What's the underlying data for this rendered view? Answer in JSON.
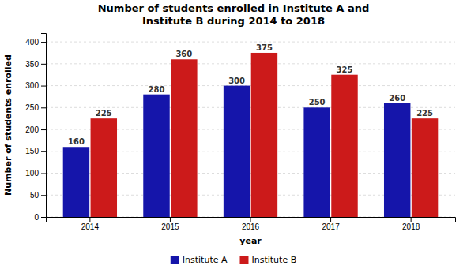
{
  "chart_data": {
    "type": "bar",
    "title": "Number of students enrolled in Institute A and\nInstitute B during 2014 to 2018",
    "x_label": "year",
    "y_label": "Number of students enrolled",
    "categories": [
      "2014",
      "2015",
      "2016",
      "2017",
      "2018"
    ],
    "series": [
      {
        "name": "Institute A",
        "color": "#1515aa",
        "values": [
          160,
          280,
          300,
          250,
          260
        ]
      },
      {
        "name": "Institute B",
        "color": "#cc1a1a",
        "values": [
          225,
          360,
          375,
          325,
          225
        ]
      }
    ],
    "ylim": [
      0,
      420
    ],
    "yticks": [
      0,
      50,
      100,
      150,
      200,
      250,
      300,
      350,
      400
    ],
    "grid": true,
    "data_labels": true,
    "legend": "bottom"
  }
}
